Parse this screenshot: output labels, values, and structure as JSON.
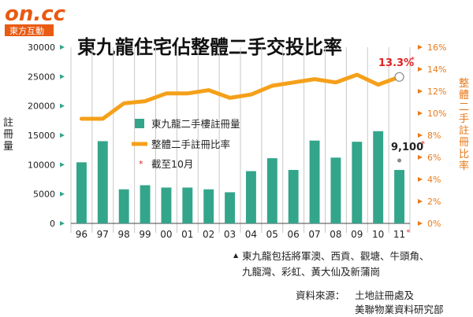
{
  "logo": {
    "main": "on.cc",
    "sub": "東方互動"
  },
  "chart_data": {
    "type": "bar+line",
    "title": "東九龍住宅佔整體二手交投比率",
    "categories": [
      "96",
      "97",
      "98",
      "99",
      "00",
      "01",
      "02",
      "03",
      "04",
      "05",
      "06",
      "07",
      "08",
      "09",
      "10",
      "11"
    ],
    "category_suffix": {
      "11": "*"
    },
    "bar_series": {
      "name": "東九龍二手樓註冊量",
      "values": [
        10400,
        14000,
        5800,
        6500,
        6100,
        6100,
        5800,
        5300,
        8900,
        11100,
        9100,
        14100,
        11200,
        13900,
        15700,
        9100
      ],
      "color": "#33a58a"
    },
    "line_series": {
      "name": "整體二手註冊比率",
      "values": [
        9.5,
        9.5,
        10.9,
        11.1,
        11.8,
        11.8,
        12.1,
        11.4,
        11.7,
        12.5,
        12.8,
        13.1,
        12.8,
        13.5,
        12.6,
        13.3
      ],
      "color": "#f5a01a"
    },
    "left_axis": {
      "label": "註冊量",
      "ticks": [
        "0",
        "5000",
        "10000",
        "15000",
        "20000",
        "25000",
        "30000"
      ],
      "min": 0,
      "max": 30000
    },
    "right_axis": {
      "label": "整體二手註冊比率",
      "ticks": [
        "0%",
        "2%",
        "4%",
        "6%",
        "8%",
        "10%",
        "12%",
        "14%",
        "16%"
      ],
      "min": 0,
      "max": 16,
      "color": "#e87a1a"
    },
    "annotations": {
      "last_rate": "13.3%",
      "last_rate_mark": "*",
      "last_volume": "9,100",
      "last_volume_mark": "*"
    },
    "legend": {
      "bar": "東九龍二手樓註冊量",
      "line": "整體二手註冊比率",
      "note_mark": "*",
      "note": "截至10月"
    }
  },
  "footnote": {
    "line1": "東九龍包括將軍澳、西貢、觀塘、牛頭角、",
    "line2": "九龍灣、彩虹、黃大仙及新蒲崗"
  },
  "source": {
    "label": "資料來源：",
    "line1": "土地註冊處及",
    "line2": "美聯物業資料研究部"
  }
}
